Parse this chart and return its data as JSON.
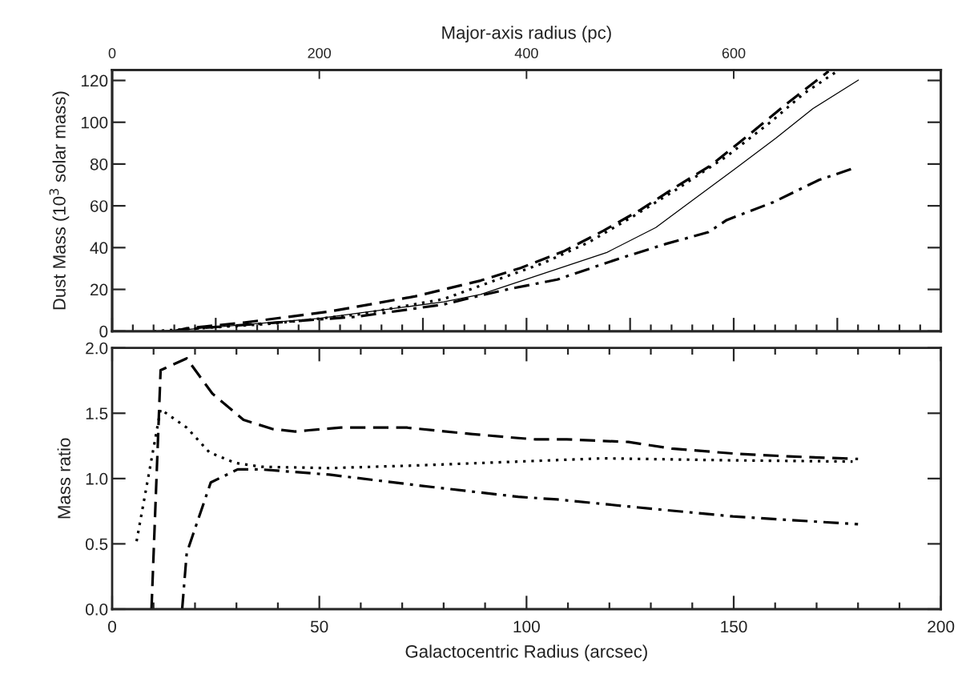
{
  "chart_data": [
    {
      "type": "line",
      "x2label": "Major-axis radius (pc)",
      "ylabel": "Dust Mass (10$^{3}$ solar mass)",
      "xlim": [
        0,
        200
      ],
      "ylim": [
        0,
        125
      ],
      "yticks": [
        0,
        20,
        40,
        60,
        80,
        100,
        120
      ],
      "x2lim": [
        0,
        800
      ],
      "x2ticks": [
        0,
        200,
        400,
        600
      ],
      "tick_labels": "y",
      "grid": false,
      "series": [
        {
          "color": "#000000",
          "line_style": "solid",
          "x": [
            10,
            18,
            49.7,
            80,
            88.9,
            119.4,
            131.2,
            140.9,
            150.5,
            160.2,
            169.1,
            180.1
          ],
          "values": [
            0,
            0.8,
            6.1,
            14,
            17.6,
            37.7,
            49.6,
            63.9,
            78,
            92.4,
            106.5,
            120.2
          ]
        },
        {
          "color": "#000000",
          "line_style": "dashed",
          "x": [
            15,
            18,
            31.7,
            52.4,
            73.2,
            88.9,
            98.6,
            108.9,
            118.6,
            127.5,
            136.4,
            144.6,
            153.5,
            163.2,
            172.9
          ],
          "values": [
            0,
            1.4,
            4.1,
            9.4,
            16.7,
            24.2,
            30.3,
            38.2,
            48.1,
            58.1,
            69.5,
            79.5,
            93.7,
            109.5,
            124.4
          ]
        },
        {
          "color": "#000000",
          "line_style": "dotted",
          "x": [
            10,
            38.6,
            59.3,
            80,
            88.9,
            103.8,
            114.9,
            126,
            136.4,
            148.3,
            159.4,
            166.9,
            175
          ],
          "values": [
            0,
            3.6,
            8,
            15.4,
            21.8,
            32.4,
            42.4,
            55.3,
            68.1,
            83.7,
            100.9,
            113.7,
            124.5
          ]
        },
        {
          "color": "#000000",
          "line_style": "dashdot",
          "x": [
            15,
            18,
            38.6,
            59.3,
            80,
            88.9,
            96.3,
            107.4,
            122.3,
            133.5,
            143.9,
            148.3,
            159.5,
            170.6,
            179.1
          ],
          "values": [
            0,
            1,
            4,
            7,
            12.8,
            17.1,
            20.4,
            24.7,
            34.7,
            41.7,
            47.4,
            53.2,
            61.7,
            72.4,
            78.1
          ]
        }
      ]
    },
    {
      "type": "line",
      "xlabel": "Galactocentric Radius (arcsec)",
      "ylabel": "Mass ratio",
      "xlim": [
        0,
        200
      ],
      "xticks": [
        0,
        50,
        100,
        150,
        200
      ],
      "ylim": [
        0,
        2
      ],
      "yticks": [
        {
          "value": 0,
          "label": "0.0"
        },
        0.5,
        {
          "value": 1,
          "label": "1.0"
        },
        1.5,
        {
          "value": 2,
          "label": "2.0"
        }
      ],
      "grid": false,
      "series": [
        {
          "color": "#000000",
          "line_style": "dashed",
          "x": [
            9.5,
            11.7,
            18,
            24.2,
            31.7,
            38.6,
            44.2,
            47.5,
            55.2,
            71.1,
            87,
            98,
            102.2,
            109.7,
            124.6,
            135,
            150.5,
            163.2,
            180
          ],
          "values": [
            0,
            1.83,
            1.92,
            1.65,
            1.45,
            1.38,
            1.36,
            1.37,
            1.39,
            1.39,
            1.34,
            1.31,
            1.3,
            1.3,
            1.28,
            1.23,
            1.19,
            1.17,
            1.15
          ]
        },
        {
          "color": "#000000",
          "line_style": "dotted",
          "x": [
            5.9,
            11.7,
            18,
            23.5,
            29.7,
            36,
            52.4,
            73.2,
            98,
            118.6,
            148.3,
            178.7
          ],
          "values": [
            0.52,
            1.53,
            1.39,
            1.2,
            1.12,
            1.09,
            1.08,
            1.1,
            1.13,
            1.155,
            1.14,
            1.13
          ]
        },
        {
          "color": "#000000",
          "line_style": "dashdot",
          "x": [
            16.9,
            18,
            23.8,
            30.3,
            35.9,
            52.4,
            73.2,
            98,
            107.4,
            129.8,
            149.8,
            180
          ],
          "values": [
            0,
            0.43,
            0.97,
            1.07,
            1.07,
            1.03,
            0.95,
            0.86,
            0.84,
            0.77,
            0.71,
            0.65
          ]
        }
      ]
    }
  ]
}
